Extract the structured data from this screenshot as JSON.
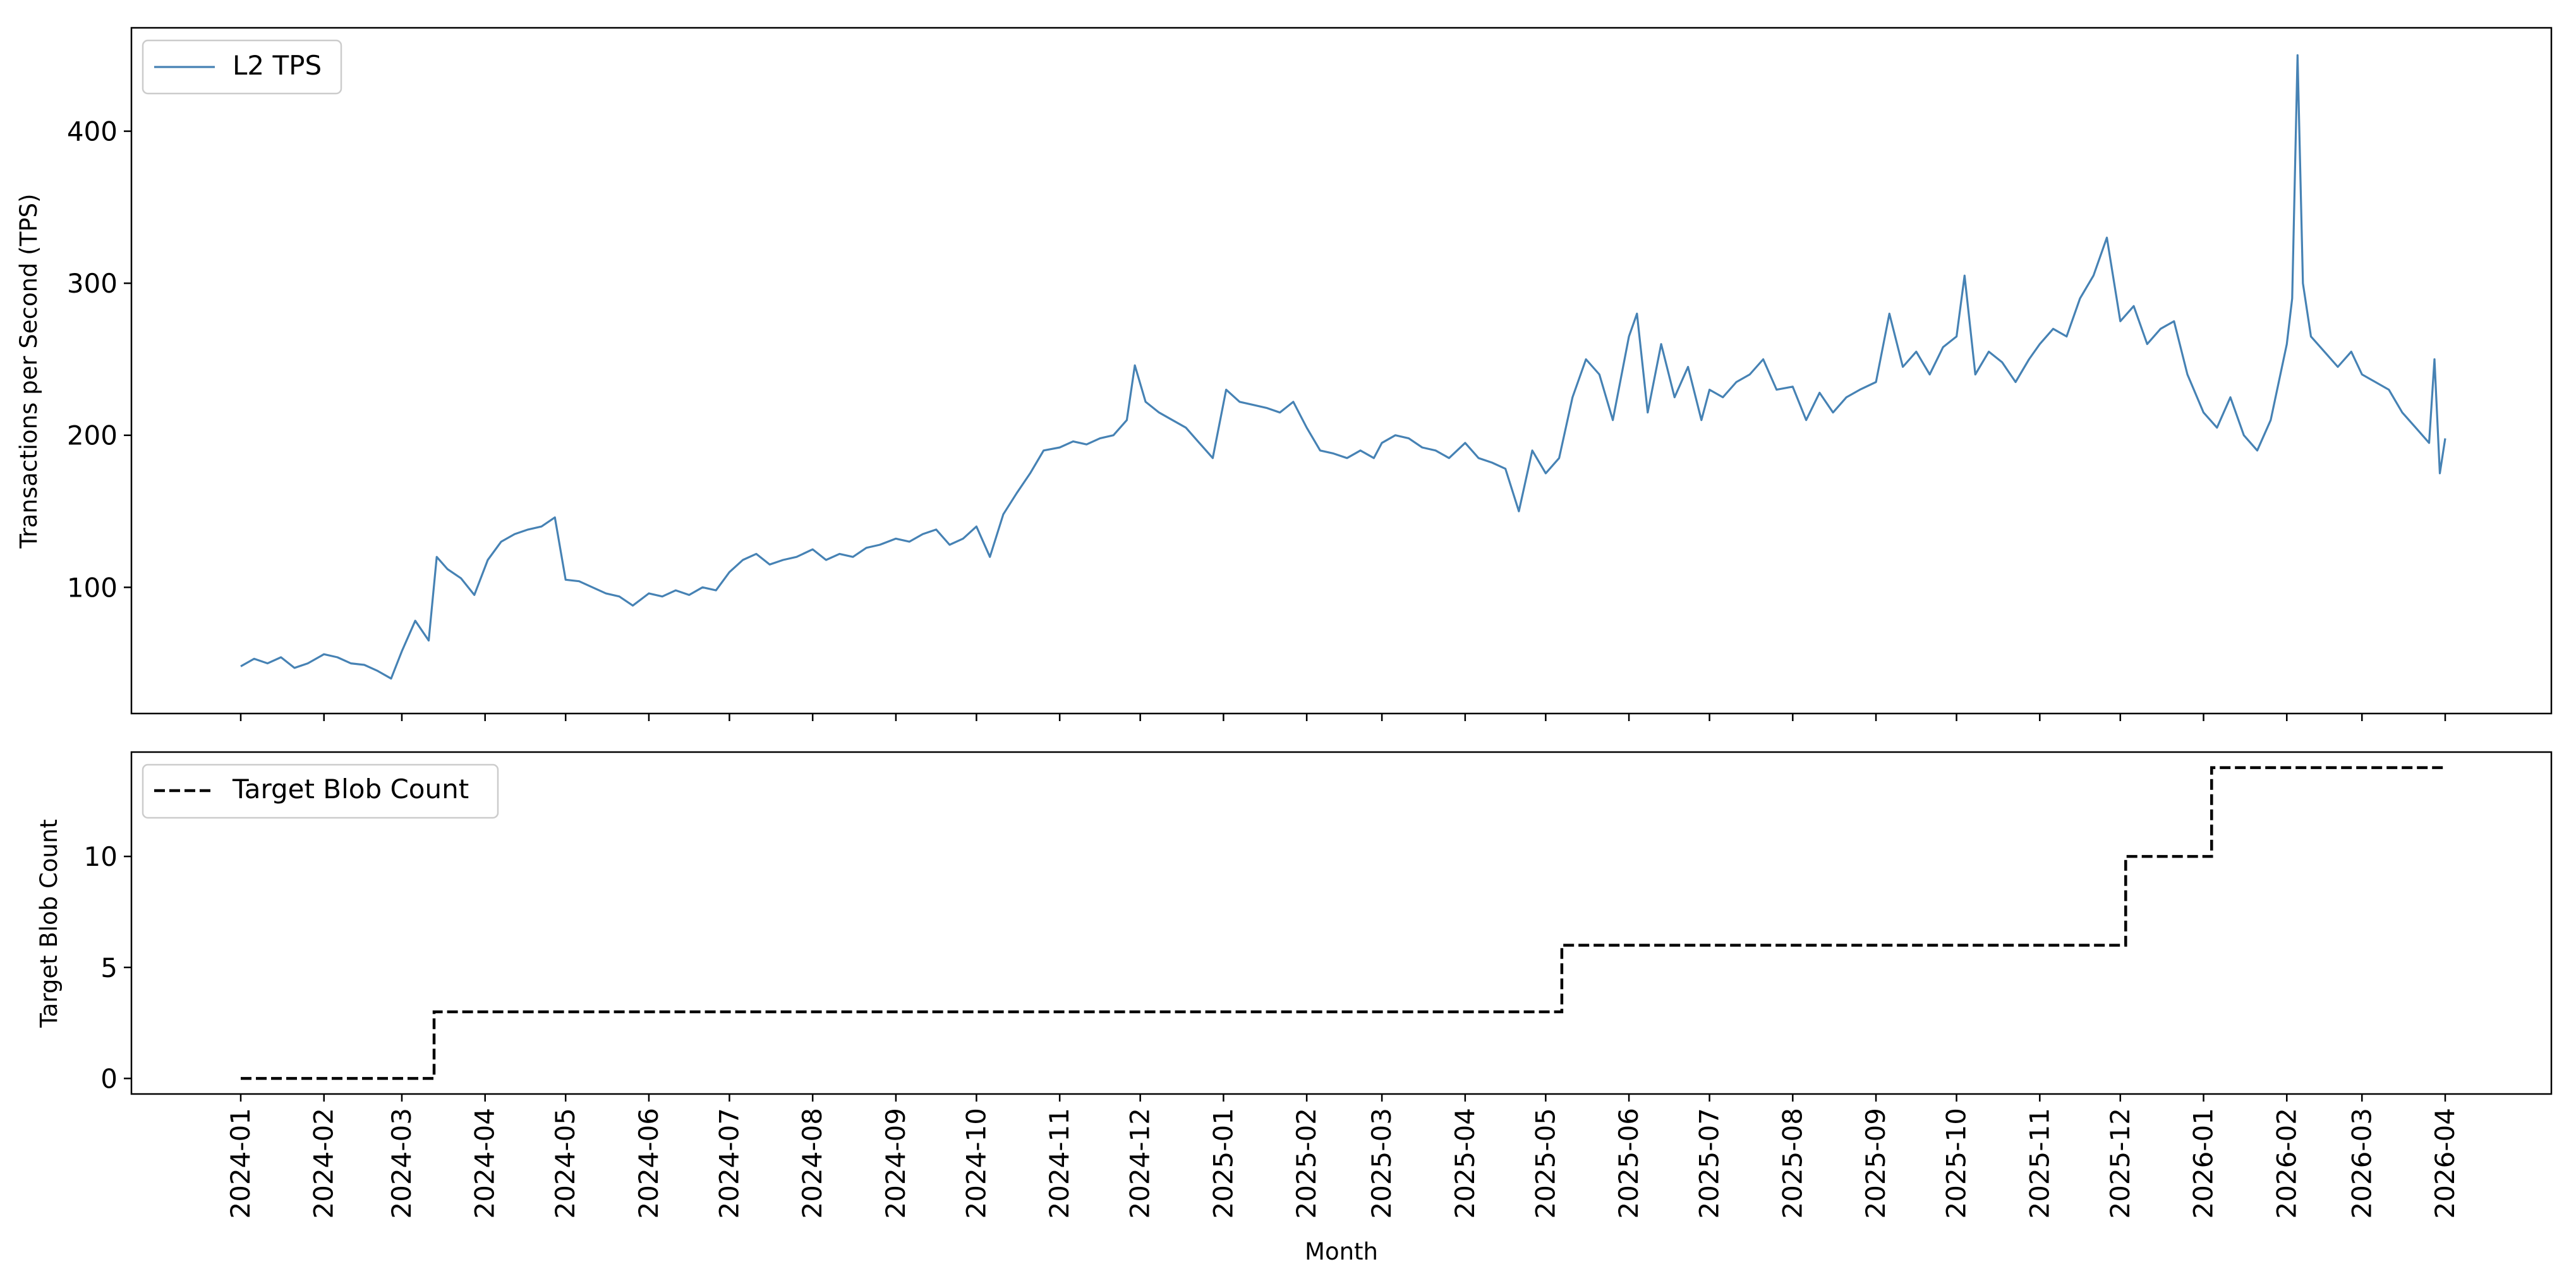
{
  "chart_data": [
    {
      "type": "line",
      "ylabel": "Transactions per Second (TPS)",
      "xlabel": "",
      "ylim": [
        17,
        468
      ],
      "yticks": [
        100,
        200,
        300,
        400
      ],
      "grid": false,
      "legend_position": "top-left",
      "colors": {
        "tps": "#4682b4"
      },
      "series": [
        {
          "name": "L2 TPS",
          "style": "solid",
          "points": [
            [
              "2024-01-01",
              48
            ],
            [
              "2024-01-06",
              53
            ],
            [
              "2024-01-11",
              50
            ],
            [
              "2024-01-16",
              54
            ],
            [
              "2024-01-21",
              47
            ],
            [
              "2024-01-26",
              50
            ],
            [
              "2024-02-01",
              56
            ],
            [
              "2024-02-06",
              54
            ],
            [
              "2024-02-11",
              50
            ],
            [
              "2024-02-16",
              49
            ],
            [
              "2024-02-21",
              45
            ],
            [
              "2024-02-26",
              40
            ],
            [
              "2024-03-01",
              58
            ],
            [
              "2024-03-06",
              78
            ],
            [
              "2024-03-11",
              65
            ],
            [
              "2024-03-14",
              120
            ],
            [
              "2024-03-18",
              112
            ],
            [
              "2024-03-23",
              106
            ],
            [
              "2024-03-28",
              95
            ],
            [
              "2024-04-02",
              118
            ],
            [
              "2024-04-07",
              130
            ],
            [
              "2024-04-12",
              135
            ],
            [
              "2024-04-17",
              138
            ],
            [
              "2024-04-22",
              140
            ],
            [
              "2024-04-27",
              146
            ],
            [
              "2024-05-01",
              105
            ],
            [
              "2024-05-06",
              104
            ],
            [
              "2024-05-11",
              100
            ],
            [
              "2024-05-16",
              96
            ],
            [
              "2024-05-21",
              94
            ],
            [
              "2024-05-26",
              88
            ],
            [
              "2024-06-01",
              96
            ],
            [
              "2024-06-06",
              94
            ],
            [
              "2024-06-11",
              98
            ],
            [
              "2024-06-16",
              95
            ],
            [
              "2024-06-21",
              100
            ],
            [
              "2024-06-26",
              98
            ],
            [
              "2024-07-01",
              110
            ],
            [
              "2024-07-06",
              118
            ],
            [
              "2024-07-11",
              122
            ],
            [
              "2024-07-16",
              115
            ],
            [
              "2024-07-21",
              118
            ],
            [
              "2024-07-26",
              120
            ],
            [
              "2024-08-01",
              125
            ],
            [
              "2024-08-06",
              118
            ],
            [
              "2024-08-11",
              122
            ],
            [
              "2024-08-16",
              120
            ],
            [
              "2024-08-21",
              126
            ],
            [
              "2024-08-26",
              128
            ],
            [
              "2024-09-01",
              132
            ],
            [
              "2024-09-06",
              130
            ],
            [
              "2024-09-11",
              135
            ],
            [
              "2024-09-16",
              138
            ],
            [
              "2024-09-21",
              128
            ],
            [
              "2024-09-26",
              132
            ],
            [
              "2024-10-01",
              140
            ],
            [
              "2024-10-06",
              120
            ],
            [
              "2024-10-11",
              148
            ],
            [
              "2024-10-16",
              162
            ],
            [
              "2024-10-21",
              175
            ],
            [
              "2024-10-26",
              190
            ],
            [
              "2024-11-01",
              192
            ],
            [
              "2024-11-06",
              196
            ],
            [
              "2024-11-11",
              194
            ],
            [
              "2024-11-16",
              198
            ],
            [
              "2024-11-21",
              200
            ],
            [
              "2024-11-26",
              210
            ],
            [
              "2024-11-29",
              246
            ],
            [
              "2024-12-03",
              222
            ],
            [
              "2024-12-08",
              215
            ],
            [
              "2024-12-13",
              210
            ],
            [
              "2024-12-18",
              205
            ],
            [
              "2024-12-23",
              195
            ],
            [
              "2024-12-28",
              185
            ],
            [
              "2025-01-02",
              230
            ],
            [
              "2025-01-07",
              222
            ],
            [
              "2025-01-12",
              220
            ],
            [
              "2025-01-17",
              218
            ],
            [
              "2025-01-22",
              215
            ],
            [
              "2025-01-27",
              222
            ],
            [
              "2025-02-01",
              205
            ],
            [
              "2025-02-06",
              190
            ],
            [
              "2025-02-11",
              188
            ],
            [
              "2025-02-16",
              185
            ],
            [
              "2025-02-21",
              190
            ],
            [
              "2025-02-26",
              185
            ],
            [
              "2025-03-01",
              195
            ],
            [
              "2025-03-06",
              200
            ],
            [
              "2025-03-11",
              198
            ],
            [
              "2025-03-16",
              192
            ],
            [
              "2025-03-21",
              190
            ],
            [
              "2025-03-26",
              185
            ],
            [
              "2025-04-01",
              195
            ],
            [
              "2025-04-06",
              185
            ],
            [
              "2025-04-11",
              182
            ],
            [
              "2025-04-16",
              178
            ],
            [
              "2025-04-21",
              150
            ],
            [
              "2025-04-26",
              190
            ],
            [
              "2025-05-01",
              175
            ],
            [
              "2025-05-06",
              185
            ],
            [
              "2025-05-11",
              225
            ],
            [
              "2025-05-16",
              250
            ],
            [
              "2025-05-21",
              240
            ],
            [
              "2025-05-26",
              210
            ],
            [
              "2025-06-01",
              265
            ],
            [
              "2025-06-04",
              280
            ],
            [
              "2025-06-08",
              215
            ],
            [
              "2025-06-13",
              260
            ],
            [
              "2025-06-18",
              225
            ],
            [
              "2025-06-23",
              245
            ],
            [
              "2025-06-28",
              210
            ],
            [
              "2025-07-01",
              230
            ],
            [
              "2025-07-06",
              225
            ],
            [
              "2025-07-11",
              235
            ],
            [
              "2025-07-16",
              240
            ],
            [
              "2025-07-21",
              250
            ],
            [
              "2025-07-26",
              230
            ],
            [
              "2025-08-01",
              232
            ],
            [
              "2025-08-06",
              210
            ],
            [
              "2025-08-11",
              228
            ],
            [
              "2025-08-16",
              215
            ],
            [
              "2025-08-21",
              225
            ],
            [
              "2025-08-26",
              230
            ],
            [
              "2025-09-01",
              235
            ],
            [
              "2025-09-06",
              280
            ],
            [
              "2025-09-11",
              245
            ],
            [
              "2025-09-16",
              255
            ],
            [
              "2025-09-21",
              240
            ],
            [
              "2025-09-26",
              258
            ],
            [
              "2025-10-01",
              265
            ],
            [
              "2025-10-04",
              305
            ],
            [
              "2025-10-08",
              240
            ],
            [
              "2025-10-13",
              255
            ],
            [
              "2025-10-18",
              248
            ],
            [
              "2025-10-23",
              235
            ],
            [
              "2025-10-28",
              250
            ],
            [
              "2025-11-01",
              260
            ],
            [
              "2025-11-06",
              270
            ],
            [
              "2025-11-11",
              265
            ],
            [
              "2025-11-16",
              290
            ],
            [
              "2025-11-21",
              305
            ],
            [
              "2025-11-26",
              330
            ],
            [
              "2025-12-01",
              275
            ],
            [
              "2025-12-06",
              285
            ],
            [
              "2025-12-11",
              260
            ],
            [
              "2025-12-16",
              270
            ],
            [
              "2025-12-21",
              275
            ],
            [
              "2025-12-26",
              240
            ],
            [
              "2026-01-01",
              215
            ],
            [
              "2026-01-06",
              205
            ],
            [
              "2026-01-11",
              225
            ],
            [
              "2026-01-16",
              200
            ],
            [
              "2026-01-21",
              190
            ],
            [
              "2026-01-26",
              210
            ],
            [
              "2026-02-01",
              260
            ],
            [
              "2026-02-03",
              290
            ],
            [
              "2026-02-05",
              450
            ],
            [
              "2026-02-07",
              300
            ],
            [
              "2026-02-10",
              265
            ],
            [
              "2026-02-15",
              255
            ],
            [
              "2026-02-20",
              245
            ],
            [
              "2026-02-25",
              255
            ],
            [
              "2026-03-01",
              240
            ],
            [
              "2026-03-06",
              235
            ],
            [
              "2026-03-11",
              230
            ],
            [
              "2026-03-16",
              215
            ],
            [
              "2026-03-21",
              205
            ],
            [
              "2026-03-26",
              195
            ],
            [
              "2026-03-28",
              250
            ],
            [
              "2026-03-30",
              175
            ],
            [
              "2026-04-01",
              198
            ]
          ]
        }
      ]
    },
    {
      "type": "line",
      "ylabel": "Target Blob Count",
      "xlabel": "Month",
      "ylim": [
        -0.7,
        14.7
      ],
      "yticks": [
        0,
        5,
        10
      ],
      "grid": false,
      "legend_position": "top-left",
      "colors": {
        "blob": "#000000"
      },
      "x_tick_labels": [
        "2024-01",
        "2024-02",
        "2024-03",
        "2024-04",
        "2024-05",
        "2024-06",
        "2024-07",
        "2024-08",
        "2024-09",
        "2024-10",
        "2024-11",
        "2024-12",
        "2025-01",
        "2025-02",
        "2025-03",
        "2025-04",
        "2025-05",
        "2025-06",
        "2025-07",
        "2025-08",
        "2025-09",
        "2025-10",
        "2025-11",
        "2025-12",
        "2026-01",
        "2026-02",
        "2026-03",
        "2026-04"
      ],
      "series": [
        {
          "name": "Target Blob Count",
          "style": "dashed",
          "step": "post",
          "points": [
            [
              "2024-01-01",
              0
            ],
            [
              "2024-03-13",
              3
            ],
            [
              "2025-05-07",
              6
            ],
            [
              "2025-12-03",
              10
            ],
            [
              "2026-01-04",
              14
            ],
            [
              "2026-04-01",
              14
            ]
          ]
        }
      ]
    }
  ]
}
